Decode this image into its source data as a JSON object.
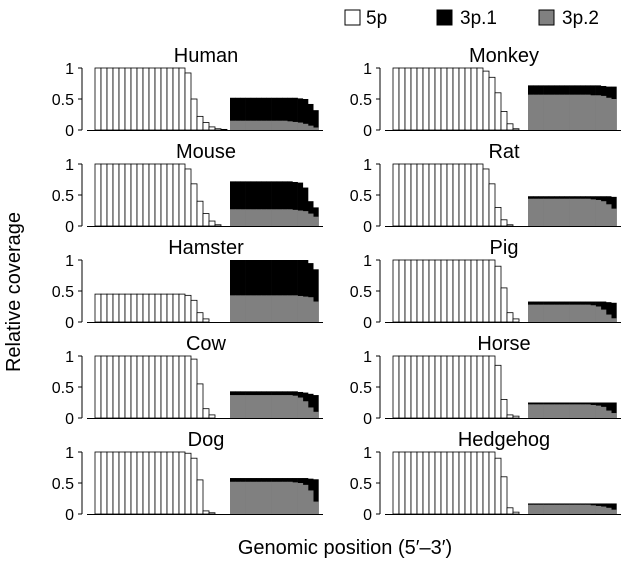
{
  "legend": {
    "items": [
      {
        "label": "5p",
        "color": "#ffffff"
      },
      {
        "label": "3p.1",
        "color": "#000000"
      },
      {
        "label": "3p.2",
        "color": "#808080"
      }
    ],
    "placement": "top-right"
  },
  "axes": {
    "ylabel": "Relative coverage",
    "xlabel": "Genomic position (5′–3′)"
  },
  "chart_data": {
    "type": "bar",
    "layout": {
      "rows": 5,
      "cols": 2
    },
    "ylim": [
      0,
      1
    ],
    "yticks": [
      {
        "value": 0,
        "label": "0"
      },
      {
        "value": 0.5,
        "label": "0.5"
      },
      {
        "value": 1,
        "label": "1"
      }
    ],
    "series_names": [
      "5p",
      "3p.1",
      "3p.2"
    ],
    "panels": [
      {
        "title": "Human",
        "p5": [
          1,
          1,
          1,
          1,
          1,
          1,
          1,
          1,
          1,
          1,
          1,
          1,
          1,
          1,
          1,
          0.92,
          0.5,
          0.22,
          0.12,
          0.05,
          0.02,
          0.01,
          0.0
        ],
        "p31": [
          0.52,
          0.52,
          0.52,
          0.52,
          0.52,
          0.52,
          0.52,
          0.52,
          0.52,
          0.52,
          0.52,
          0.52,
          0.52,
          0.51,
          0.5,
          0.42,
          0.32
        ],
        "p32": [
          0.15,
          0.15,
          0.15,
          0.15,
          0.15,
          0.15,
          0.15,
          0.15,
          0.15,
          0.15,
          0.15,
          0.14,
          0.13,
          0.12,
          0.1,
          0.07,
          0.04
        ]
      },
      {
        "title": "Monkey",
        "p5": [
          1,
          1,
          1,
          1,
          1,
          1,
          1,
          1,
          1,
          1,
          1,
          1,
          1,
          1,
          1,
          0.95,
          0.85,
          0.6,
          0.3,
          0.1,
          0.02
        ],
        "p31": [
          0.72,
          0.72,
          0.72,
          0.72,
          0.72,
          0.72,
          0.72,
          0.72,
          0.72,
          0.72,
          0.72,
          0.72,
          0.72,
          0.72,
          0.71,
          0.7,
          0.7
        ],
        "p32": [
          0.57,
          0.57,
          0.57,
          0.57,
          0.57,
          0.57,
          0.57,
          0.57,
          0.57,
          0.57,
          0.57,
          0.57,
          0.56,
          0.56,
          0.55,
          0.52,
          0.5
        ]
      },
      {
        "title": "Mouse",
        "p5": [
          1,
          1,
          1,
          1,
          1,
          1,
          1,
          1,
          1,
          1,
          1,
          1,
          1,
          1,
          1,
          0.92,
          0.68,
          0.4,
          0.2,
          0.08,
          0.02
        ],
        "p31": [
          0.72,
          0.72,
          0.72,
          0.72,
          0.72,
          0.72,
          0.72,
          0.72,
          0.72,
          0.72,
          0.72,
          0.72,
          0.71,
          0.7,
          0.62,
          0.4,
          0.3
        ],
        "p32": [
          0.27,
          0.27,
          0.27,
          0.27,
          0.27,
          0.27,
          0.27,
          0.27,
          0.27,
          0.27,
          0.27,
          0.27,
          0.26,
          0.25,
          0.24,
          0.2,
          0.15
        ]
      },
      {
        "title": "Rat",
        "p5": [
          1,
          1,
          1,
          1,
          1,
          1,
          1,
          1,
          1,
          1,
          1,
          1,
          1,
          1,
          1,
          0.92,
          0.68,
          0.3,
          0.1,
          0.02
        ],
        "p31": [
          0.48,
          0.48,
          0.48,
          0.48,
          0.48,
          0.48,
          0.48,
          0.48,
          0.48,
          0.48,
          0.48,
          0.48,
          0.48,
          0.48,
          0.48,
          0.48,
          0.47
        ],
        "p32": [
          0.44,
          0.44,
          0.44,
          0.44,
          0.44,
          0.44,
          0.44,
          0.44,
          0.44,
          0.44,
          0.44,
          0.44,
          0.43,
          0.42,
          0.4,
          0.35,
          0.28
        ]
      },
      {
        "title": "Hamster",
        "p5": [
          0.45,
          0.45,
          0.45,
          0.45,
          0.45,
          0.45,
          0.45,
          0.45,
          0.45,
          0.45,
          0.45,
          0.45,
          0.45,
          0.45,
          0.45,
          0.43,
          0.35,
          0.15,
          0.05,
          0.0
        ],
        "p31": [
          1,
          1,
          1,
          1,
          1,
          1,
          1,
          1,
          1,
          1,
          1,
          1,
          1,
          1,
          1,
          0.95,
          0.85
        ],
        "p32": [
          0.43,
          0.43,
          0.43,
          0.43,
          0.43,
          0.43,
          0.43,
          0.43,
          0.43,
          0.43,
          0.43,
          0.43,
          0.43,
          0.42,
          0.41,
          0.4,
          0.33
        ]
      },
      {
        "title": "Pig",
        "p5": [
          1,
          1,
          1,
          1,
          1,
          1,
          1,
          1,
          1,
          1,
          1,
          1,
          1,
          1,
          1,
          1,
          1,
          0.9,
          0.55,
          0.15,
          0.05
        ],
        "p31": [
          0.33,
          0.33,
          0.33,
          0.33,
          0.33,
          0.33,
          0.33,
          0.33,
          0.33,
          0.33,
          0.33,
          0.33,
          0.33,
          0.33,
          0.33,
          0.32,
          0.31
        ],
        "p32": [
          0.28,
          0.28,
          0.28,
          0.28,
          0.28,
          0.28,
          0.28,
          0.28,
          0.28,
          0.28,
          0.28,
          0.28,
          0.27,
          0.25,
          0.2,
          0.12,
          0.06
        ]
      },
      {
        "title": "Cow",
        "p5": [
          1,
          1,
          1,
          1,
          1,
          1,
          1,
          1,
          1,
          1,
          1,
          1,
          1,
          1,
          1,
          1,
          0.95,
          0.55,
          0.15,
          0.05
        ],
        "p31": [
          0.43,
          0.43,
          0.43,
          0.43,
          0.43,
          0.43,
          0.43,
          0.43,
          0.43,
          0.43,
          0.43,
          0.43,
          0.43,
          0.42,
          0.41,
          0.39,
          0.37
        ],
        "p32": [
          0.37,
          0.37,
          0.37,
          0.37,
          0.37,
          0.37,
          0.37,
          0.37,
          0.37,
          0.37,
          0.37,
          0.37,
          0.36,
          0.33,
          0.27,
          0.17,
          0.1
        ]
      },
      {
        "title": "Horse",
        "p5": [
          1,
          1,
          1,
          1,
          1,
          1,
          1,
          1,
          1,
          1,
          1,
          1,
          1,
          1,
          1,
          1,
          1,
          0.85,
          0.3,
          0.05,
          0.03
        ],
        "p31": [
          0.25,
          0.25,
          0.25,
          0.25,
          0.25,
          0.25,
          0.25,
          0.25,
          0.25,
          0.25,
          0.25,
          0.25,
          0.25,
          0.25,
          0.25,
          0.25,
          0.25
        ],
        "p32": [
          0.22,
          0.22,
          0.22,
          0.22,
          0.22,
          0.22,
          0.22,
          0.22,
          0.22,
          0.22,
          0.22,
          0.22,
          0.21,
          0.2,
          0.18,
          0.12,
          0.08
        ]
      },
      {
        "title": "Dog",
        "p5": [
          1,
          1,
          1,
          1,
          1,
          1,
          1,
          1,
          1,
          1,
          1,
          1,
          1,
          1,
          1,
          0.98,
          0.9,
          0.55,
          0.05,
          0.02
        ],
        "p31": [
          0.58,
          0.58,
          0.58,
          0.58,
          0.58,
          0.58,
          0.58,
          0.58,
          0.58,
          0.58,
          0.58,
          0.58,
          0.58,
          0.58,
          0.58,
          0.57,
          0.56
        ],
        "p32": [
          0.52,
          0.52,
          0.52,
          0.52,
          0.52,
          0.52,
          0.52,
          0.52,
          0.52,
          0.52,
          0.52,
          0.52,
          0.51,
          0.5,
          0.47,
          0.38,
          0.2
        ]
      },
      {
        "title": "Hedgehog",
        "p5": [
          1,
          1,
          1,
          1,
          1,
          1,
          1,
          1,
          1,
          1,
          1,
          1,
          1,
          1,
          1,
          1,
          1,
          0.9,
          0.6,
          0.1,
          0.03
        ],
        "p31": [
          0.17,
          0.17,
          0.17,
          0.17,
          0.17,
          0.17,
          0.17,
          0.17,
          0.17,
          0.17,
          0.17,
          0.17,
          0.17,
          0.17,
          0.17,
          0.17,
          0.17
        ],
        "p32": [
          0.15,
          0.15,
          0.15,
          0.15,
          0.15,
          0.15,
          0.15,
          0.15,
          0.15,
          0.15,
          0.15,
          0.15,
          0.14,
          0.13,
          0.12,
          0.1,
          0.07
        ]
      }
    ]
  }
}
